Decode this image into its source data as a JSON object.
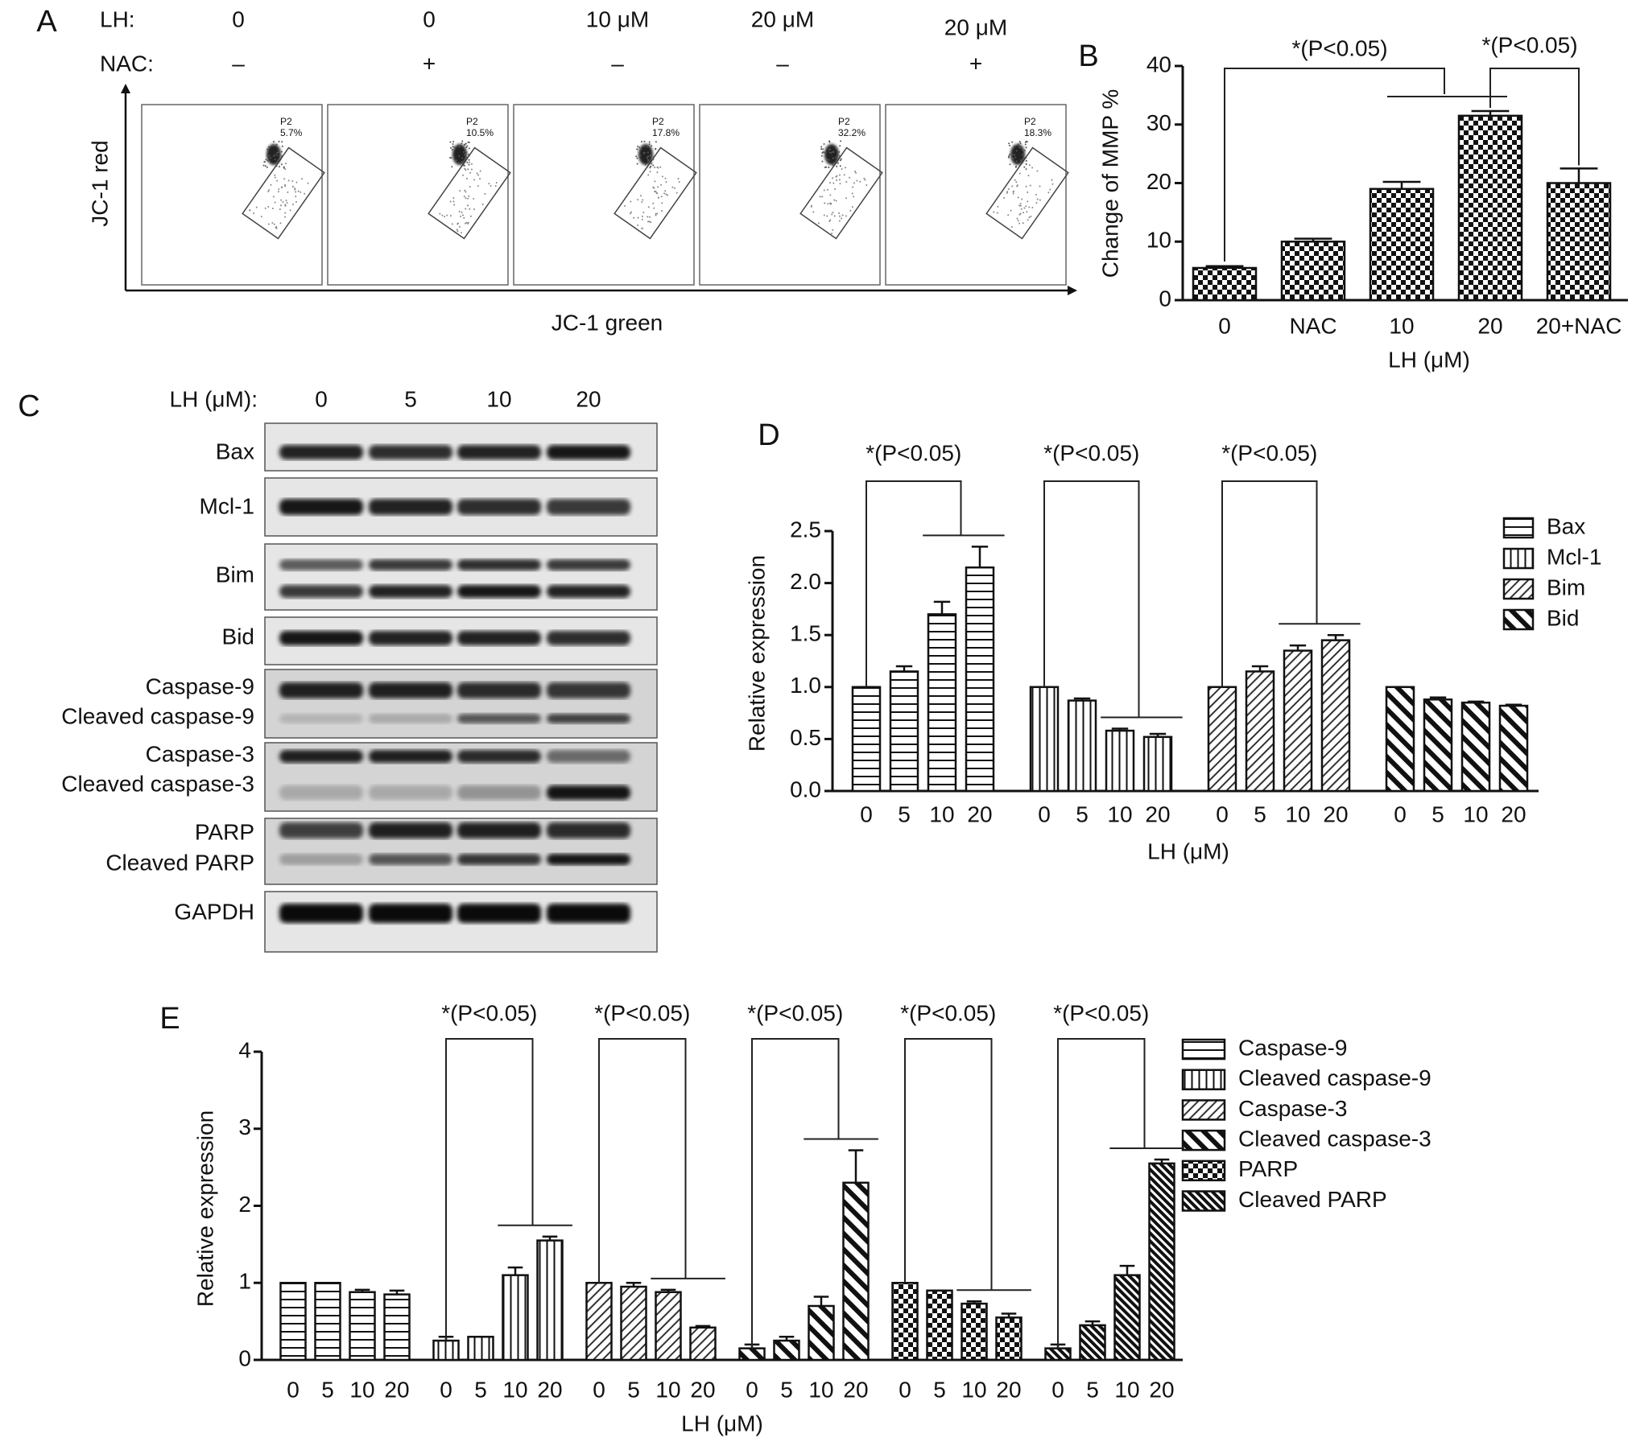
{
  "flow_cytometry": {
    "label": "A",
    "lh_label": "LH:",
    "nac_label": "NAC:",
    "ylabel": "JC-1 red",
    "xlabel": "JC-1 green",
    "samples": [
      {
        "lh": "0",
        "nac": "–",
        "gate": "P2",
        "percent": "5.7%"
      },
      {
        "lh": "0",
        "nac": "+",
        "gate": "P2",
        "percent": "10.5%"
      },
      {
        "lh": "10 μM",
        "nac": "–",
        "gate": "P2",
        "percent": "17.8%"
      },
      {
        "lh": "20 μM",
        "nac": "–",
        "gate": "P2",
        "percent": "32.2%"
      },
      {
        "lh": "20 μM",
        "nac": "+",
        "gate": "P2",
        "percent": "18.3%"
      }
    ]
  },
  "western_blot": {
    "label": "C",
    "lh_label": "LH (μM):",
    "doses": [
      "0",
      "5",
      "10",
      "20"
    ],
    "rows": [
      [
        "Bax"
      ],
      [
        "Mcl-1"
      ],
      [
        "Bim"
      ],
      [
        "Bid"
      ],
      [
        "Caspase-9",
        "Cleaved caspase-9"
      ],
      [
        "Caspase-3",
        "Cleaved caspase-3"
      ],
      [
        "PARP",
        "Cleaved PARP"
      ],
      [
        "GAPDH"
      ]
    ]
  },
  "chart_data": [
    {
      "type": "bar",
      "label": "B",
      "ylabel": "Change of MMP %",
      "xlabel": "LH (μM)",
      "categories": [
        "0",
        "NAC",
        "10",
        "20",
        "20+NAC"
      ],
      "values": [
        5.5,
        10,
        19,
        31.5,
        20
      ],
      "errors": [
        0.3,
        0.5,
        1.2,
        0.8,
        2.5
      ],
      "pattern": "checker",
      "ylim": [
        0,
        40
      ],
      "yticks": [
        0,
        10,
        20,
        30,
        40
      ],
      "annotations": [
        "*(P<0.05)",
        "*(P<0.05)"
      ]
    },
    {
      "type": "bar",
      "label": "D",
      "ylabel": "Relative expression",
      "xlabel": "LH (μM)",
      "categories": [
        "0",
        "5",
        "10",
        "20"
      ],
      "ylim": [
        0,
        2.5
      ],
      "yticks": [
        {
          "value": 0,
          "label": "0.0"
        },
        0.5,
        {
          "value": 1,
          "label": "1.0"
        },
        1.5,
        {
          "value": 2,
          "label": "2.0"
        },
        2.5
      ],
      "series": [
        {
          "name": "Bax",
          "pattern": "horizontal",
          "values": [
            1,
            1.15,
            1.7,
            2.15
          ],
          "errors": [
            0,
            0.05,
            0.12,
            0.2
          ],
          "annotation": "*(P<0.05)"
        },
        {
          "name": "Mcl-1",
          "pattern": "vertical",
          "values": [
            1,
            0.87,
            0.58,
            0.52
          ],
          "errors": [
            0,
            0.02,
            0.02,
            0.03
          ],
          "annotation": "*(P<0.05)"
        },
        {
          "name": "Bim",
          "pattern": "diagonal",
          "values": [
            1,
            1.15,
            1.35,
            1.45
          ],
          "errors": [
            0,
            0.05,
            0.05,
            0.05
          ],
          "annotation": "*(P<0.05)"
        },
        {
          "name": "Bid",
          "pattern": "back-diagonal",
          "values": [
            1,
            0.88,
            0.85,
            0.82
          ],
          "errors": [
            0,
            0.02,
            0.01,
            0.01
          ]
        }
      ]
    },
    {
      "type": "bar",
      "label": "E",
      "ylabel": "Relative expression",
      "xlabel": "LH (μM)",
      "categories": [
        "0",
        "5",
        "10",
        "20"
      ],
      "ylim": [
        0,
        4
      ],
      "yticks": [
        0,
        1,
        2,
        3,
        4
      ],
      "series": [
        {
          "name": "Caspase-9",
          "pattern": "horizontal",
          "values": [
            1,
            1,
            0.88,
            0.85
          ],
          "errors": [
            0,
            0,
            0.03,
            0.05
          ]
        },
        {
          "name": "Cleaved caspase-9",
          "pattern": "vertical",
          "values": [
            0.25,
            0.3,
            1.1,
            1.55
          ],
          "errors": [
            0.05,
            0,
            0.1,
            0.05
          ],
          "annotation": "*(P<0.05)"
        },
        {
          "name": "Caspase-3",
          "pattern": "diagonal",
          "values": [
            1,
            0.95,
            0.88,
            0.42
          ],
          "errors": [
            0,
            0.05,
            0.03,
            0.02
          ],
          "annotation": "*(P<0.05)"
        },
        {
          "name": "Cleaved caspase-3",
          "pattern": "back-diagonal",
          "values": [
            0.15,
            0.25,
            0.7,
            2.3
          ],
          "errors": [
            0.05,
            0.05,
            0.12,
            0.42
          ],
          "annotation": "*(P<0.05)"
        },
        {
          "name": "PARP",
          "pattern": "checker",
          "values": [
            1,
            0.9,
            0.73,
            0.55
          ],
          "errors": [
            0,
            0,
            0.03,
            0.05
          ],
          "annotation": "*(P<0.05)"
        },
        {
          "name": "Cleaved PARP",
          "pattern": "dense-back-diagonal",
          "values": [
            0.15,
            0.45,
            1.1,
            2.55
          ],
          "errors": [
            0.05,
            0.05,
            0.12,
            0.05
          ],
          "annotation": "*(P<0.05)"
        }
      ]
    }
  ]
}
